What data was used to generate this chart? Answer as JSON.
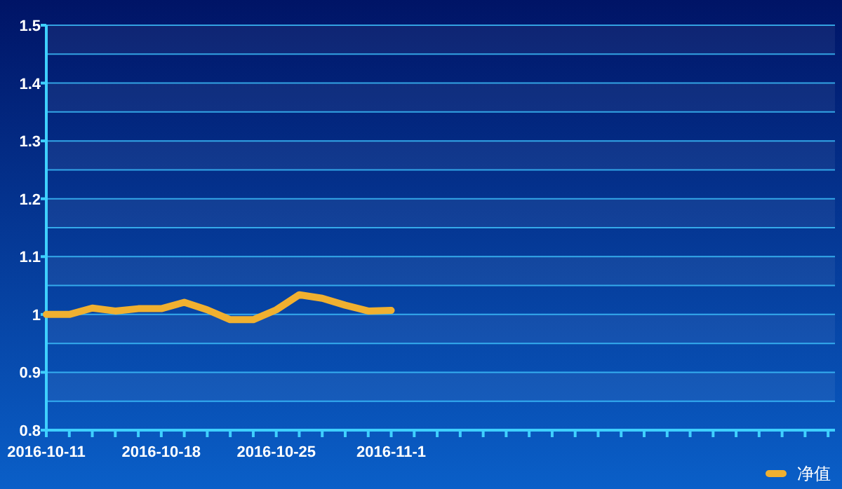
{
  "chart_data": {
    "type": "line",
    "categories": [
      "2016-10-11",
      null,
      null,
      null,
      null,
      "2016-10-18",
      null,
      null,
      null,
      null,
      "2016-10-25",
      null,
      null,
      null,
      null,
      "2016-11-1",
      null,
      null,
      null,
      null,
      null,
      null,
      null,
      null,
      null,
      null,
      null,
      null,
      null,
      null,
      null,
      null,
      null,
      null,
      null
    ],
    "series": [
      {
        "name": "净值",
        "color": "#f0b030",
        "values": [
          1.0,
          1.0,
          1.011,
          1.006,
          1.01,
          1.01,
          1.021,
          1.008,
          0.991,
          0.991,
          1.008,
          1.034,
          1.028,
          1.016,
          1.006,
          1.007,
          null,
          null,
          null,
          null,
          null,
          null,
          null,
          null,
          null,
          null,
          null,
          null,
          null,
          null,
          null,
          null,
          null,
          null,
          null
        ]
      }
    ],
    "ylim": [
      0.8,
      1.5
    ],
    "yticks": [
      0.8,
      {
        "value": 0.85,
        "label": null
      },
      0.9,
      {
        "value": 0.95,
        "label": null
      },
      1,
      {
        "value": 1.05,
        "label": null
      },
      1.1,
      {
        "value": 1.15,
        "label": null
      },
      1.2,
      {
        "value": 1.25,
        "label": null
      },
      1.3,
      {
        "value": 1.35,
        "label": null
      },
      1.4,
      {
        "value": 1.45,
        "label": null
      },
      1.5
    ],
    "grid": "y",
    "legend": "bottom right",
    "marker": "none",
    "line_style": "solid"
  }
}
